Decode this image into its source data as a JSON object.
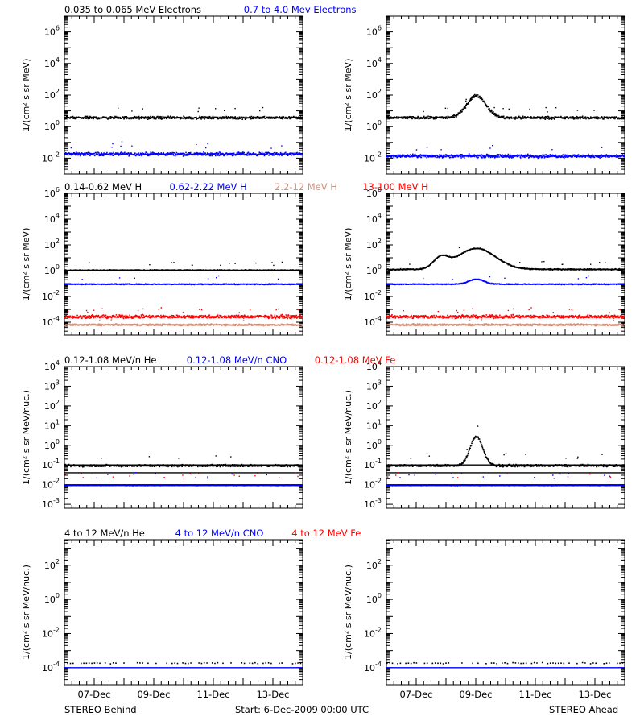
{
  "colors": {
    "black": "#000000",
    "blue": "#0000ff",
    "salmon": "#d0907a",
    "red": "#ff0000"
  },
  "footer": {
    "left": "STEREO Behind",
    "start": "Start:  6-Dec-2009 00:00 UTC",
    "right": "STEREO Ahead"
  },
  "x_ticks": [
    "07-Dec",
    "09-Dec",
    "11-Dec",
    "13-Dec"
  ],
  "rows": [
    {
      "ylabel": "1/(cm² s sr MeV)",
      "titles": [
        {
          "text": "0.035 to 0.065 MeV Electrons",
          "color": "#000000"
        },
        {
          "text": "0.7 to 4.0 Mev Electrons",
          "color": "#0000ff"
        }
      ],
      "ylim_exp": [
        -3,
        7
      ],
      "y_ticks": [
        "10^-2",
        "10^0",
        "10^2",
        "10^4",
        "10^6"
      ]
    },
    {
      "ylabel": "1/(cm² s sr MeV)",
      "titles": [
        {
          "text": "0.14-0.62 MeV H",
          "color": "#000000"
        },
        {
          "text": "0.62-2.22 MeV H",
          "color": "#0000ff"
        },
        {
          "text": "2.2-12 MeV H",
          "color": "#d0907a"
        },
        {
          "text": "13-100 MeV H",
          "color": "#ff0000"
        }
      ],
      "ylim_exp": [
        -5,
        6
      ],
      "y_ticks": [
        "10^-4",
        "10^-2",
        "10^0",
        "10^2",
        "10^4",
        "10^6"
      ]
    },
    {
      "ylabel": "1/(cm² s sr MeV/nuc.)",
      "titles": [
        {
          "text": "0.12-1.08 MeV/n He",
          "color": "#000000"
        },
        {
          "text": "0.12-1.08 MeV/n CNO",
          "color": "#0000ff"
        },
        {
          "text": "0.12-1.08 MeV Fe",
          "color": "#ff0000"
        }
      ],
      "ylim_exp": [
        -3.2,
        4
      ],
      "y_ticks": [
        "10^-3",
        "10^-2",
        "10^-1",
        "10^0",
        "10^1",
        "10^2",
        "10^3",
        "10^4"
      ]
    },
    {
      "ylabel": "1/(cm² s sr MeV/nuc.)",
      "titles": [
        {
          "text": "4 to 12 MeV/n He",
          "color": "#000000"
        },
        {
          "text": "4 to 12 MeV/n CNO",
          "color": "#0000ff"
        },
        {
          "text": "4 to 12 MeV Fe",
          "color": "#ff0000"
        }
      ],
      "ylim_exp": [
        -5,
        3.5
      ],
      "y_ticks": [
        "10^-4",
        "10^-2",
        "10^0",
        "10^2"
      ]
    }
  ],
  "chart_data": [
    {
      "type": "scatter",
      "spacecraft": "STEREO Behind",
      "row": 0,
      "y_scale": "log",
      "ylim": [
        0.001,
        10000000
      ],
      "x": [
        "06-Dec-2009",
        "14-Dec-2009"
      ],
      "series": [
        {
          "name": "0.035 to 0.065 MeV Electrons",
          "color": "#000000",
          "baseline": 4,
          "scatter_decades": 0.12
        },
        {
          "name": "0.7 to 4.0 Mev Electrons",
          "color": "#0000ff",
          "baseline": 0.02,
          "scatter_decades": 0.15
        }
      ]
    },
    {
      "type": "scatter",
      "spacecraft": "STEREO Ahead",
      "row": 0,
      "y_scale": "log",
      "ylim": [
        0.001,
        10000000
      ],
      "x": [
        "06-Dec-2009",
        "14-Dec-2009"
      ],
      "series": [
        {
          "name": "0.035 to 0.065 MeV Electrons",
          "color": "#000000",
          "baseline": 4,
          "scatter_decades": 0.12,
          "enhancement": {
            "day": 9.0,
            "peak": 100,
            "width_days": 0.45
          }
        },
        {
          "name": "0.7 to 4.0 Mev Electrons",
          "color": "#0000ff",
          "baseline": 0.015,
          "scatter_decades": 0.15
        }
      ]
    },
    {
      "type": "scatter",
      "spacecraft": "STEREO Behind",
      "row": 1,
      "y_scale": "log",
      "ylim": [
        1e-05,
        1000000
      ],
      "x": [
        "06-Dec-2009",
        "14-Dec-2009"
      ],
      "series": [
        {
          "name": "0.14-0.62 MeV H",
          "color": "#000000",
          "baseline": 1.2,
          "scatter_decades": 0.05
        },
        {
          "name": "0.62-2.22 MeV H",
          "color": "#0000ff",
          "baseline": 0.1,
          "scatter_decades": 0.05
        },
        {
          "name": "2.2-12 MeV H",
          "color": "#d0907a",
          "baseline": 7e-05,
          "scatter_decades": 0.1
        },
        {
          "name": "13-100 MeV H",
          "color": "#ff0000",
          "baseline": 0.0003,
          "scatter_decades": 0.18
        }
      ]
    },
    {
      "type": "scatter",
      "spacecraft": "STEREO Ahead",
      "row": 1,
      "y_scale": "log",
      "ylim": [
        1e-05,
        1000000
      ],
      "x": [
        "06-Dec-2009",
        "14-Dec-2009"
      ],
      "series": [
        {
          "name": "0.14-0.62 MeV H",
          "color": "#000000",
          "baseline": 1.4,
          "scatter_decades": 0.06,
          "enhancement": {
            "day": 9.0,
            "peak": 60,
            "width_days": 0.9
          }
        },
        {
          "name": "0.62-2.22 MeV H",
          "color": "#0000ff",
          "baseline": 0.1,
          "scatter_decades": 0.05,
          "enhancement": {
            "day": 9.0,
            "peak": 0.25,
            "width_days": 0.35
          }
        },
        {
          "name": "2.2-12 MeV H",
          "color": "#d0907a",
          "baseline": 7e-05,
          "scatter_decades": 0.1
        },
        {
          "name": "13-100 MeV H",
          "color": "#ff0000",
          "baseline": 0.0003,
          "scatter_decades": 0.18
        }
      ]
    },
    {
      "type": "scatter",
      "spacecraft": "STEREO Behind",
      "row": 2,
      "y_scale": "log",
      "ylim": [
        0.0006,
        10000
      ],
      "x": [
        "06-Dec-2009",
        "14-Dec-2009"
      ],
      "series": [
        {
          "name": "0.12-1.08 MeV/n He",
          "color": "#000000",
          "baseline": 0.1,
          "scatter_decades": 0.08
        },
        {
          "name": "0.12-1.08 MeV/n CNO",
          "color": "#0000ff",
          "baseline": 0.01,
          "scatter_decades": 0.02
        },
        {
          "name": "0.12-1.08 MeV Fe",
          "color": "#ff0000",
          "baseline": 0.01,
          "scatter_decades": 0.01
        }
      ],
      "reference_lines": [
        {
          "value": 0.1,
          "color": "#000000"
        },
        {
          "value": 0.04,
          "color": "#000000"
        },
        {
          "value": 0.01,
          "color": "#0000ff"
        }
      ]
    },
    {
      "type": "scatter",
      "spacecraft": "STEREO Ahead",
      "row": 2,
      "y_scale": "log",
      "ylim": [
        0.0006,
        10000
      ],
      "x": [
        "06-Dec-2009",
        "14-Dec-2009"
      ],
      "series": [
        {
          "name": "0.12-1.08 MeV/n He",
          "color": "#000000",
          "baseline": 0.1,
          "scatter_decades": 0.08,
          "enhancement": {
            "day": 9.0,
            "peak": 3,
            "width_days": 0.3
          }
        },
        {
          "name": "0.12-1.08 MeV/n CNO",
          "color": "#0000ff",
          "baseline": 0.01,
          "scatter_decades": 0.02
        },
        {
          "name": "0.12-1.08 MeV Fe",
          "color": "#ff0000",
          "baseline": 0.01,
          "scatter_decades": 0.01
        }
      ],
      "reference_lines": [
        {
          "value": 0.1,
          "color": "#000000"
        },
        {
          "value": 0.04,
          "color": "#000000"
        },
        {
          "value": 0.01,
          "color": "#0000ff"
        }
      ]
    },
    {
      "type": "scatter",
      "spacecraft": "STEREO Behind",
      "row": 3,
      "y_scale": "log",
      "ylim": [
        1e-05,
        3000
      ],
      "x": [
        "06-Dec-2009",
        "14-Dec-2009"
      ],
      "series": [
        {
          "name": "4 to 12 MeV/n He",
          "color": "#000000",
          "baseline": 0.0002,
          "scatter_decades": 0.05,
          "sparse": true
        },
        {
          "name": "4 to 12 MeV/n CNO",
          "color": "#0000ff",
          "baseline": 1e-05,
          "scatter_decades": 0.02,
          "sparse": true
        },
        {
          "name": "4 to 12 MeV Fe",
          "color": "#ff0000",
          "baseline": 1e-05,
          "scatter_decades": 0.01,
          "sparse": true
        }
      ],
      "reference_lines": [
        {
          "value": 0.0001,
          "color": "#0000ff"
        }
      ]
    },
    {
      "type": "scatter",
      "spacecraft": "STEREO Ahead",
      "row": 3,
      "y_scale": "log",
      "ylim": [
        1e-05,
        3000
      ],
      "x": [
        "06-Dec-2009",
        "14-Dec-2009"
      ],
      "series": [
        {
          "name": "4 to 12 MeV/n He",
          "color": "#000000",
          "baseline": 0.0002,
          "scatter_decades": 0.05,
          "sparse": true
        },
        {
          "name": "4 to 12 MeV/n CNO",
          "color": "#0000ff",
          "baseline": 1e-05,
          "scatter_decades": 0.02,
          "sparse": true
        },
        {
          "name": "4 to 12 MeV Fe",
          "color": "#ff0000",
          "baseline": 1e-05,
          "scatter_decades": 0.01,
          "sparse": true
        }
      ],
      "reference_lines": [
        {
          "value": 0.0001,
          "color": "#0000ff"
        }
      ]
    }
  ]
}
